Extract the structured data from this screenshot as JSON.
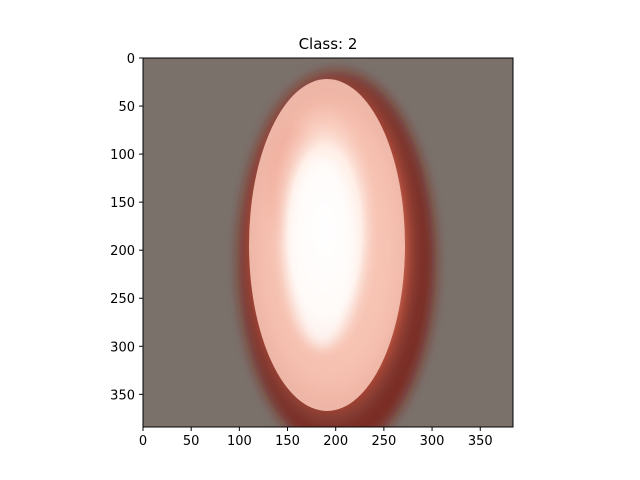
{
  "chart_data": {
    "type": "heatmap",
    "title": "Class: 2",
    "xlabel": "",
    "ylabel": "",
    "xlim": [
      0,
      384
    ],
    "ylim": [
      384,
      0
    ],
    "x_ticks": [
      0,
      50,
      100,
      150,
      200,
      250,
      300,
      350
    ],
    "y_ticks": [
      0,
      50,
      100,
      150,
      200,
      250,
      300,
      350
    ],
    "x_tick_labels": [
      "0",
      "50",
      "100",
      "150",
      "200",
      "250",
      "300",
      "350"
    ],
    "y_tick_labels": [
      "0",
      "50",
      "100",
      "150",
      "200",
      "250",
      "300",
      "350"
    ],
    "grid": false,
    "background_color": "#7b716b",
    "colormap": [
      "#7b716b",
      "#8a1a0a",
      "#f2a48e",
      "#fff5f0"
    ],
    "image_description": "Saliency overlay showing a bright vertical elliptical region centered near x=190, y=210, spanning roughly x 110-285 and y 20-384",
    "highlight_region": {
      "center": [
        190,
        215
      ],
      "radii": [
        90,
        190
      ]
    }
  }
}
